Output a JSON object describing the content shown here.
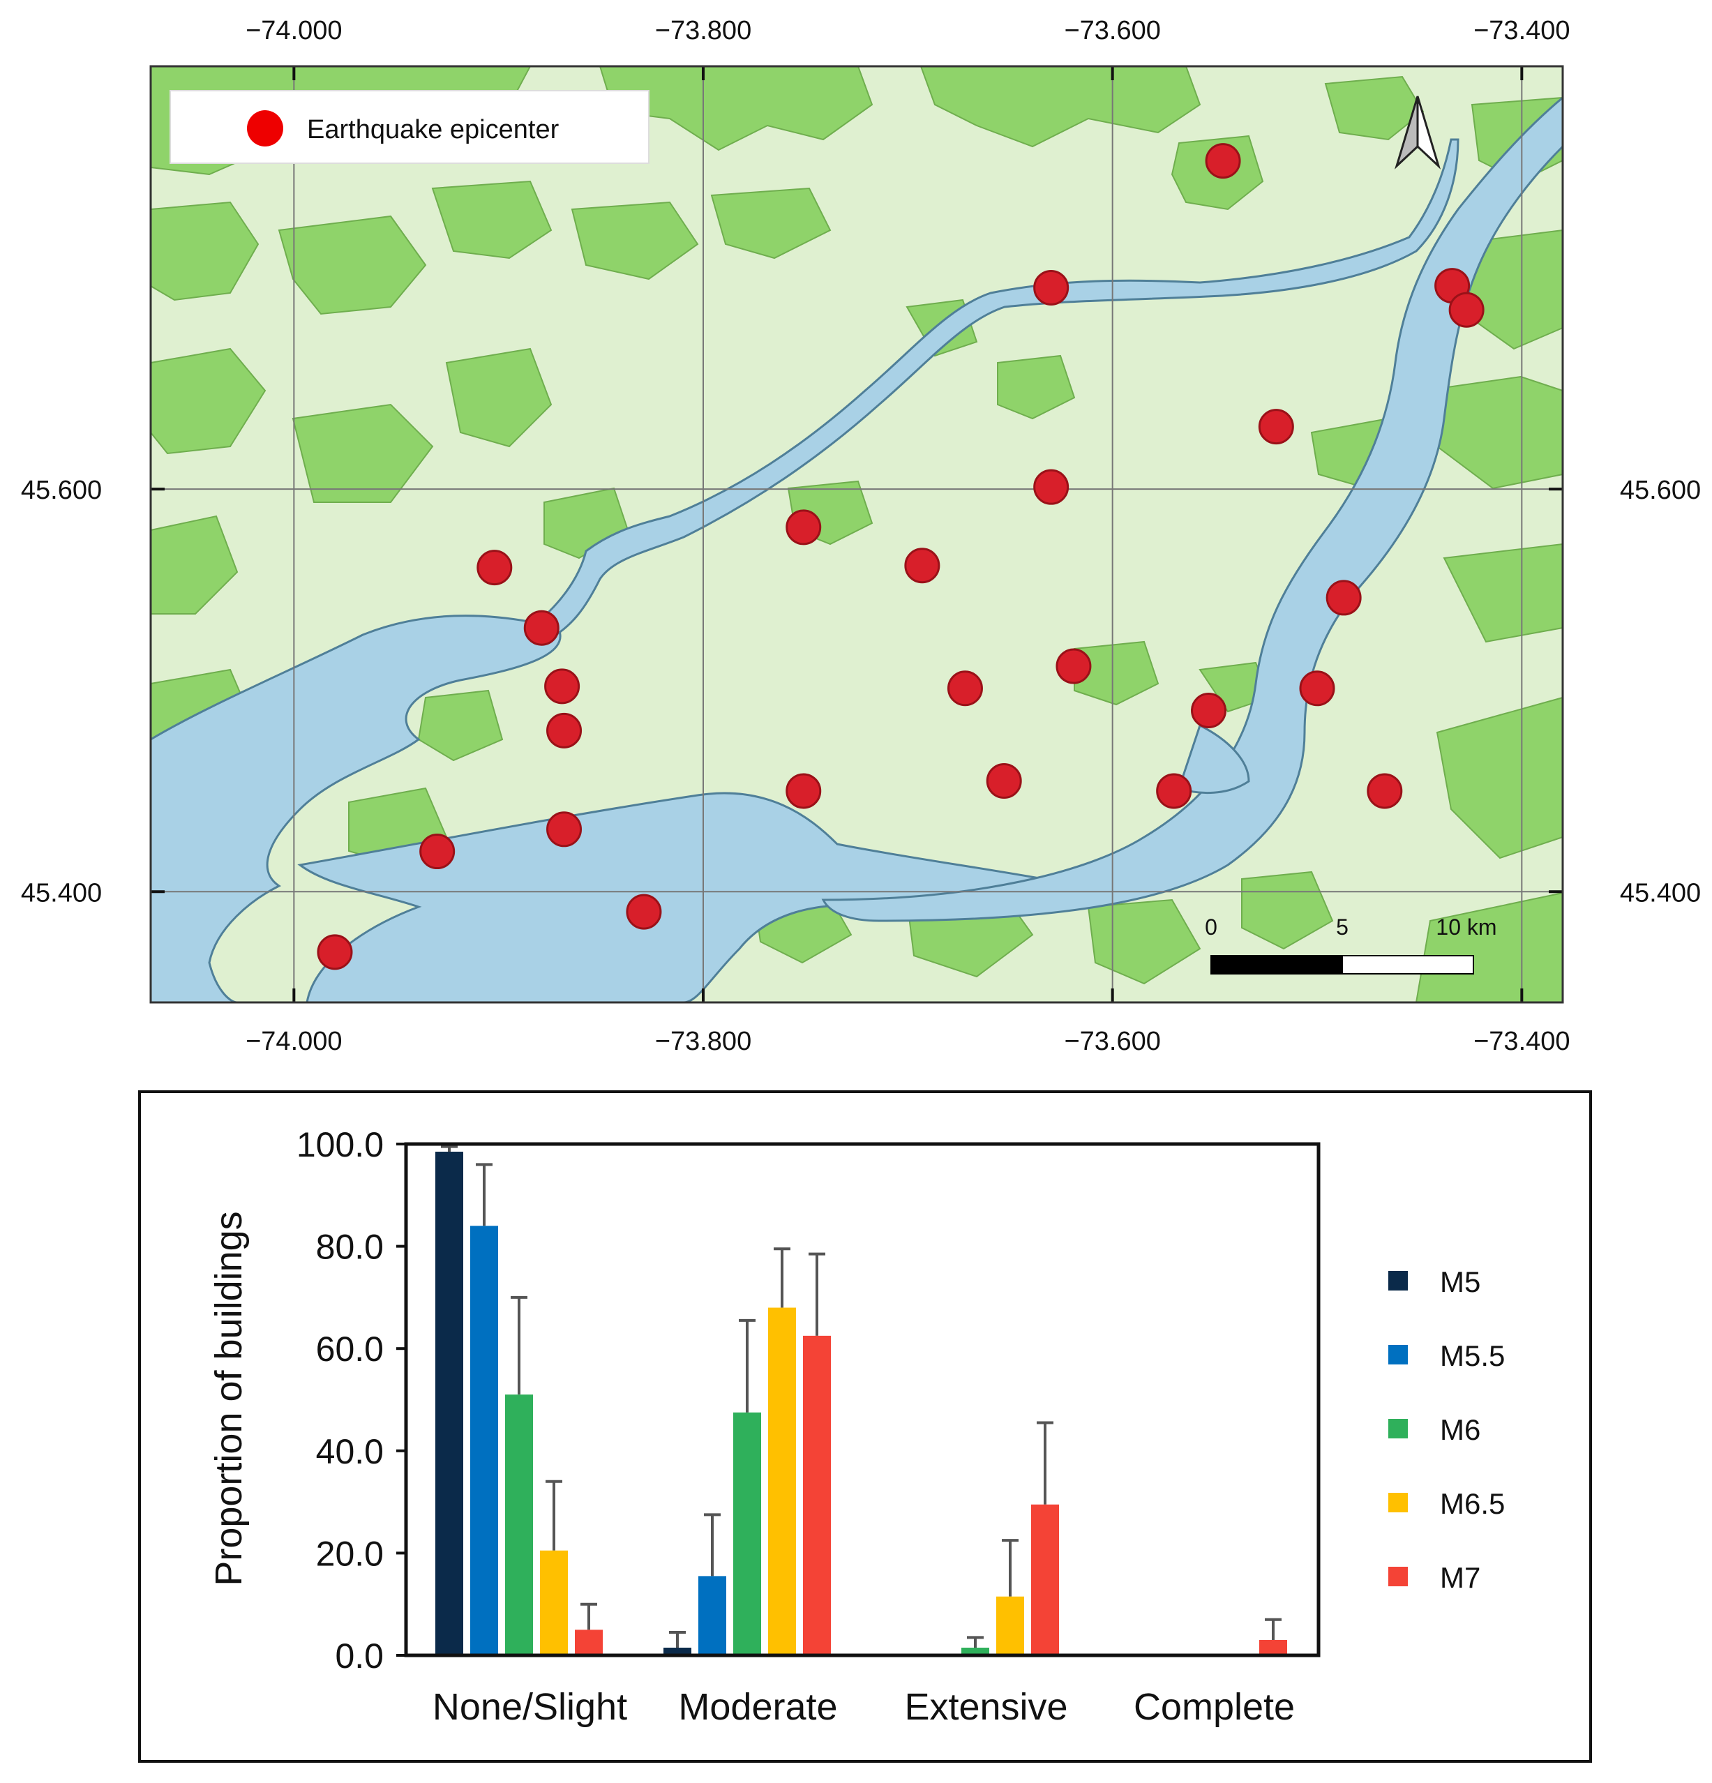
{
  "map": {
    "lon_ticks": [
      "−74.000",
      "−73.800",
      "−73.600",
      "−73.400"
    ],
    "lon_values": [
      -74.0,
      -73.8,
      -73.6,
      -73.4
    ],
    "lat_ticks": [
      "45.600",
      "45.400"
    ],
    "lat_values": [
      45.6,
      45.4
    ],
    "lon_range": [
      -74.07,
      -73.38
    ],
    "lat_range": [
      45.345,
      45.81
    ],
    "legend_label": "Earthquake epicenter",
    "scalebar_labels": [
      "0",
      "5",
      "10 km"
    ],
    "epicenters": [
      {
        "lon": -73.546,
        "lat": 45.763
      },
      {
        "lon": -73.63,
        "lat": 45.7
      },
      {
        "lon": -73.434,
        "lat": 45.701
      },
      {
        "lon": -73.427,
        "lat": 45.689
      },
      {
        "lon": -73.52,
        "lat": 45.631
      },
      {
        "lon": -73.63,
        "lat": 45.601
      },
      {
        "lon": -73.751,
        "lat": 45.581
      },
      {
        "lon": -73.693,
        "lat": 45.562
      },
      {
        "lon": -73.902,
        "lat": 45.561
      },
      {
        "lon": -73.487,
        "lat": 45.546
      },
      {
        "lon": -73.879,
        "lat": 45.531
      },
      {
        "lon": -73.619,
        "lat": 45.512
      },
      {
        "lon": -73.553,
        "lat": 45.49
      },
      {
        "lon": -73.869,
        "lat": 45.502
      },
      {
        "lon": -73.672,
        "lat": 45.501
      },
      {
        "lon": -73.5,
        "lat": 45.501
      },
      {
        "lon": -73.868,
        "lat": 45.48
      },
      {
        "lon": -73.751,
        "lat": 45.45
      },
      {
        "lon": -73.653,
        "lat": 45.455
      },
      {
        "lon": -73.57,
        "lat": 45.45
      },
      {
        "lon": -73.467,
        "lat": 45.45
      },
      {
        "lon": -73.868,
        "lat": 45.431
      },
      {
        "lon": -73.93,
        "lat": 45.42
      },
      {
        "lon": -73.829,
        "lat": 45.39
      },
      {
        "lon": -73.98,
        "lat": 45.37
      }
    ],
    "colors": {
      "land": "#dff0d0",
      "forest": "#8fd36a",
      "water": "#a9d1e6",
      "epicenter": "#d81f2a"
    }
  },
  "chart_data": {
    "type": "bar",
    "categories": [
      "None/Slight",
      "Moderate",
      "Extensive",
      "Complete"
    ],
    "ylabel": "Proportion of buildings",
    "ylim": [
      0,
      100
    ],
    "yticks": [
      "0.0",
      "20.0",
      "40.0",
      "60.0",
      "80.0",
      "100.0"
    ],
    "ytick_values": [
      0,
      20,
      40,
      60,
      80,
      100
    ],
    "legend_position": "right",
    "series": [
      {
        "name": "M5",
        "color": "#0b2a4a",
        "values": [
          98.5,
          1.5,
          0,
          0
        ],
        "errors": [
          1.0,
          3.0,
          0,
          0
        ]
      },
      {
        "name": "M5.5",
        "color": "#0070c0",
        "values": [
          84.0,
          15.5,
          0,
          0
        ],
        "errors": [
          12.0,
          12.0,
          0,
          0
        ]
      },
      {
        "name": "M6",
        "color": "#2fb05b",
        "values": [
          51.0,
          47.5,
          1.5,
          0
        ],
        "errors": [
          19.0,
          18.0,
          2.0,
          0
        ]
      },
      {
        "name": "M6.5",
        "color": "#ffc000",
        "values": [
          20.5,
          68.0,
          11.5,
          0
        ],
        "errors": [
          13.5,
          11.5,
          11.0,
          0
        ]
      },
      {
        "name": "M7",
        "color": "#f44336",
        "values": [
          5.0,
          62.5,
          29.5,
          3.0
        ],
        "errors": [
          5.0,
          16.0,
          16.0,
          4.0
        ]
      }
    ]
  }
}
